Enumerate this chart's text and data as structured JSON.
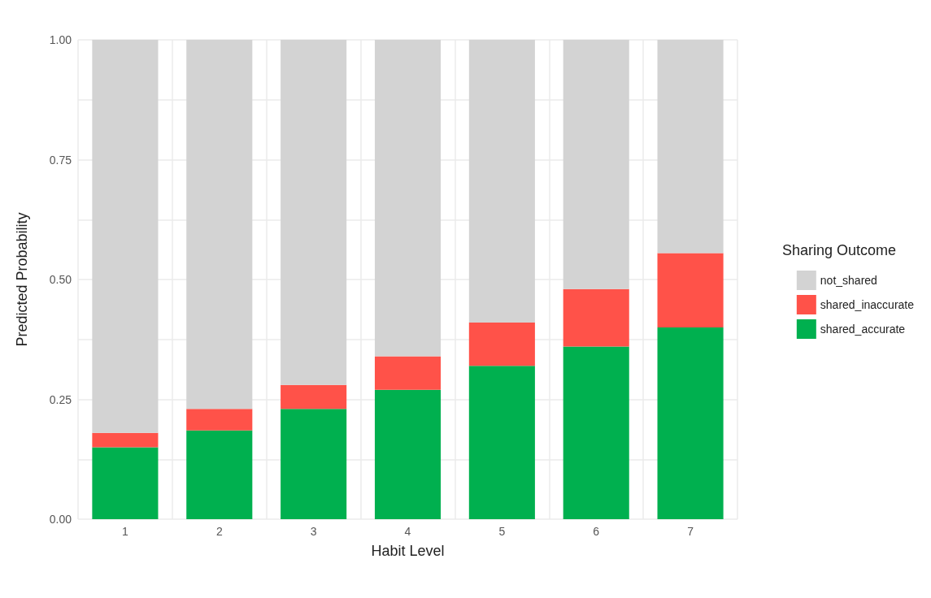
{
  "chart_data": {
    "type": "bar",
    "stacked": true,
    "xlabel": "Habit Level",
    "ylabel": "Predicted Probability",
    "legend_title": "Sharing Outcome",
    "categories": [
      "1",
      "2",
      "3",
      "4",
      "5",
      "6",
      "7"
    ],
    "series": [
      {
        "name": "shared_accurate",
        "color": "#00b04f",
        "values": [
          0.15,
          0.185,
          0.23,
          0.27,
          0.32,
          0.36,
          0.4
        ]
      },
      {
        "name": "shared_inaccurate",
        "color": "#ff5249",
        "values": [
          0.03,
          0.045,
          0.05,
          0.07,
          0.09,
          0.12,
          0.155
        ]
      },
      {
        "name": "not_shared",
        "color": "#d3d3d3",
        "values": [
          0.82,
          0.77,
          0.72,
          0.66,
          0.59,
          0.52,
          0.445
        ]
      }
    ],
    "ylim": [
      0,
      1
    ],
    "yticks": [
      {
        "value": 0,
        "label": "0.00"
      },
      {
        "value": 0.125,
        "label": null
      },
      {
        "value": 0.25,
        "label": "0.25"
      },
      {
        "value": 0.375,
        "label": null
      },
      {
        "value": 0.5,
        "label": "0.50"
      },
      {
        "value": 0.625,
        "label": null
      },
      {
        "value": 0.75,
        "label": "0.75"
      },
      {
        "value": 0.875,
        "label": null
      },
      {
        "value": 1,
        "label": "1.00"
      }
    ],
    "grid": true,
    "legend": "right"
  }
}
